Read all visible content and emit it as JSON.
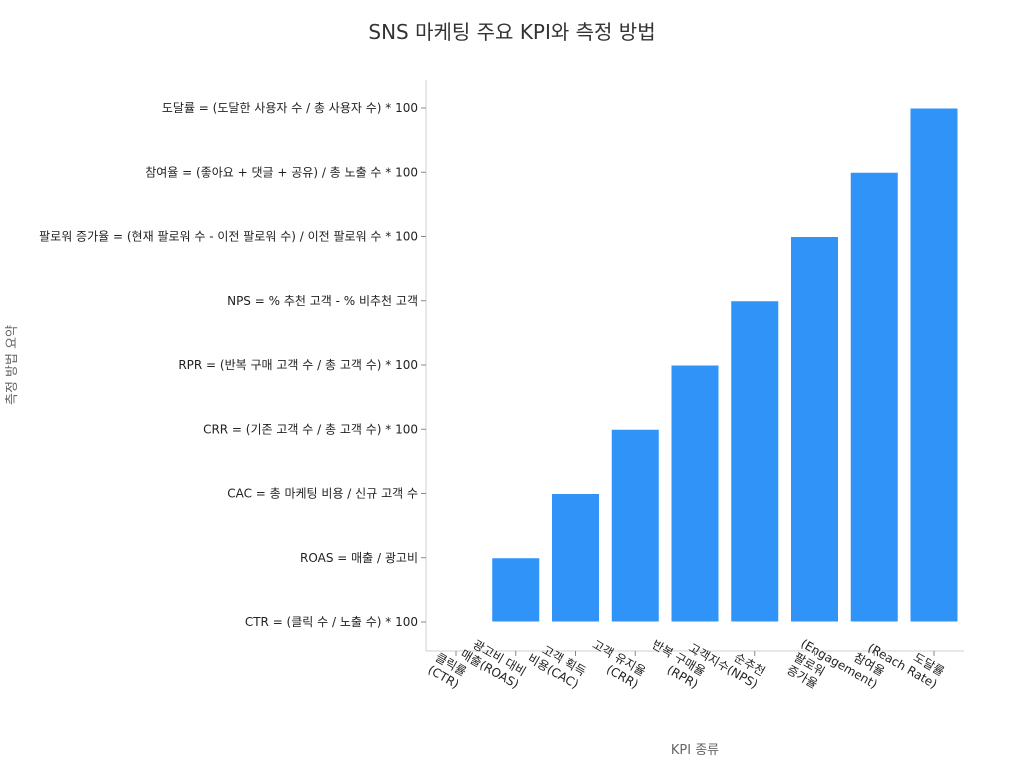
{
  "chart_data": {
    "type": "bar",
    "title": "SNS 마케팅 주요 KPI와 측정 방법",
    "xlabel": "KPI 종류",
    "ylabel": "측정 방법 요약",
    "categories": [
      [
        "클릭률",
        "(CTR)"
      ],
      [
        "광고비 대비",
        "매출(ROAS)"
      ],
      [
        "고객 획득",
        "비용(CAC)"
      ],
      [
        "고객 유지율",
        "(CRR)"
      ],
      [
        "반복 구매율",
        "(RPR)"
      ],
      [
        "순추천",
        "고객지수(NPS)"
      ],
      [
        "팔로워",
        "증가율"
      ],
      [
        "참여율",
        "(Engagement)"
      ],
      [
        "도달률",
        "(Reach Rate)"
      ]
    ],
    "y_categories": [
      "CTR = (클릭 수 / 노출 수) * 100",
      "ROAS = 매출 / 광고비",
      "CAC = 총 마케팅 비용 / 신규 고객 수",
      "CRR = (기존 고객 수 / 총 고객 수) * 100",
      "RPR = (반복 구매 고객 수 / 총 고객 수) * 100",
      "NPS = % 추천 고객 - % 비추천 고객",
      "팔로워 증가율 = (현재 팔로워 수 - 이전 팔로워 수) / 이전 팔로워 수 * 100",
      "참여율 = (좋아요 + 댓글 + 공유) / 총 노출 수 * 100",
      "도달률 = (도달한 사용자 수 / 총 사용자 수) * 100"
    ],
    "values": [
      0,
      1,
      2,
      3,
      4,
      5,
      6,
      7,
      8
    ],
    "color": "#2f93f8",
    "grid": false,
    "legend": "none"
  }
}
